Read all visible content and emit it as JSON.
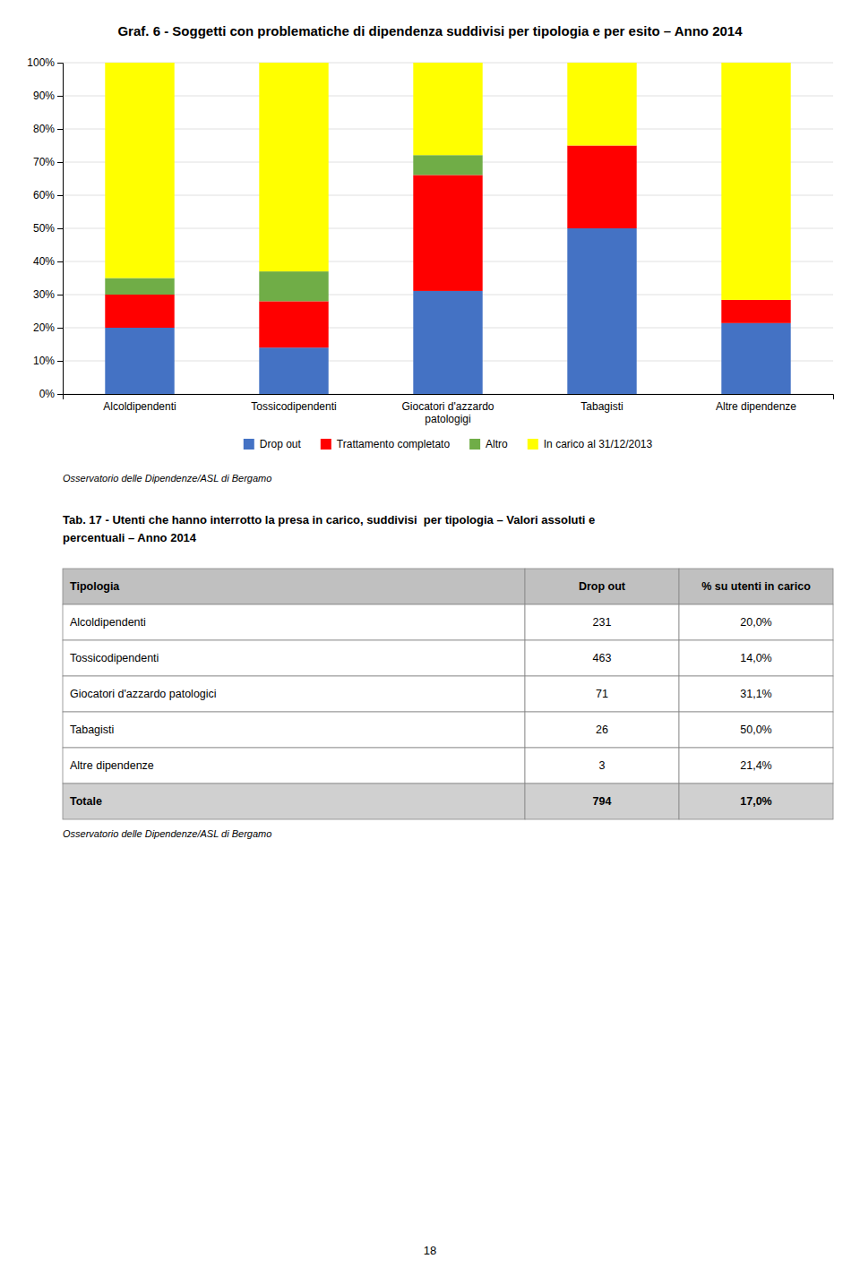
{
  "chart_data": {
    "type": "bar",
    "title": "Graf. 6 - Soggetti con problematiche di dipendenza suddivisi per tipologia e per esito – Anno 2014",
    "categories": [
      "Alcoldipendenti",
      "Tossicodipendenti",
      "Giocatori d'azzardo\npatologigi",
      "Tabagisti",
      "Altre dipendenze"
    ],
    "series": [
      {
        "name": "Drop out",
        "color": "#4472C4",
        "values": [
          20.0,
          14.0,
          31.1,
          50.0,
          21.4
        ]
      },
      {
        "name": "Trattamento completato",
        "color": "#FF0000",
        "values": [
          10.0,
          14.0,
          35.0,
          25.0,
          7.0
        ]
      },
      {
        "name": "Altro",
        "color": "#70AD47",
        "values": [
          5.0,
          9.0,
          6.0,
          0.0,
          0.0
        ]
      },
      {
        "name": "In carico al 31/12/2013",
        "color": "#FFFF00",
        "values": [
          65.0,
          63.0,
          27.9,
          25.0,
          71.6
        ]
      }
    ],
    "stacked": true,
    "ylim": [
      0,
      100
    ],
    "yticks": [
      {
        "value": 0,
        "label": "0%"
      },
      {
        "value": 10,
        "label": "10%"
      },
      {
        "value": 20,
        "label": "20%"
      },
      {
        "value": 30,
        "label": "30%"
      },
      {
        "value": 40,
        "label": "40%"
      },
      {
        "value": 50,
        "label": "50%"
      },
      {
        "value": 60,
        "label": "60%"
      },
      {
        "value": 70,
        "label": "70%"
      },
      {
        "value": 80,
        "label": "80%"
      },
      {
        "value": 90,
        "label": "90%"
      },
      {
        "value": 100,
        "label": "100%"
      }
    ],
    "grid": true,
    "legend": "bottom",
    "annotations": [
      "Osservatorio delle Dipendenze/ASL di Bergamo"
    ]
  },
  "table": {
    "title": [
      "Tab. 17 - Utenti che hanno interrotto la presa in carico, suddivisi  per tipologia – Valori assoluti e",
      "percentuali – Anno 2014"
    ],
    "headers": [
      "Tipologia",
      "Drop out",
      "% su utenti in carico"
    ],
    "rows": [
      [
        "Alcoldipendenti",
        "231",
        "20,0%"
      ],
      [
        "Tossicodipendenti",
        "463",
        "14,0%"
      ],
      [
        "Giocatori d'azzardo patologici",
        "71",
        "31,1%"
      ],
      [
        "Tabagisti",
        "26",
        "50,0%"
      ],
      [
        "Altre dipendenze",
        "3",
        "21,4%"
      ],
      [
        "Totale",
        "794",
        "17,0%"
      ]
    ],
    "source": "Osservatorio delle Dipendenze/ASL di Bergamo"
  },
  "page_number": "18"
}
